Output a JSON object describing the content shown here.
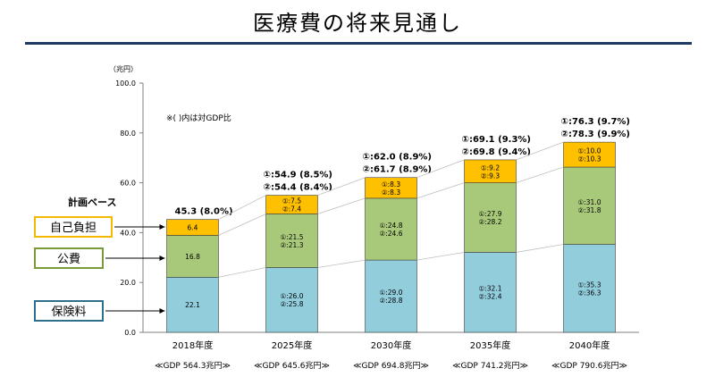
{
  "page": {
    "title": "医療費の将来見通し"
  },
  "labels": {
    "plan_base": "計画ベース",
    "note": "※(  )内は対GDP比"
  },
  "legend_boxes": [
    {
      "label": "自己負担",
      "color": "#f5b800"
    },
    {
      "label": "公費",
      "color": "#7a9a3a"
    },
    {
      "label": "保険料",
      "color": "#2e6f8e"
    }
  ],
  "chart_data": {
    "type": "bar",
    "stacked": true,
    "ylabel": "（兆円）",
    "ylim": [
      0,
      100
    ],
    "ytick_labels": [
      "0.0",
      "20.0",
      "40.0",
      "60.0",
      "80.0",
      "100.0"
    ],
    "yticks": [
      0,
      20,
      40,
      60,
      80,
      100
    ],
    "categories": [
      "2018年度",
      "2025年度",
      "2030年度",
      "2035年度",
      "2040年度"
    ],
    "gdp_labels": [
      "≪GDP 564.3兆円≫",
      "≪GDP 645.6兆円≫",
      "≪GDP 694.8兆円≫",
      "≪GDP 741.2兆円≫",
      "≪GDP 790.6兆円≫"
    ],
    "series": [
      {
        "name": "保険料",
        "color": "#92cddc",
        "values": [
          22.1,
          26.0,
          29.0,
          32.1,
          35.3
        ],
        "labels": [
          [
            "22.1"
          ],
          [
            "①:26.0",
            "②:25.8"
          ],
          [
            "①:29.0",
            "②:28.8"
          ],
          [
            "①:32.1",
            "②:32.4"
          ],
          [
            "①:35.3",
            "②:36.3"
          ]
        ]
      },
      {
        "name": "公費",
        "color": "#a9c97a",
        "values": [
          16.8,
          21.5,
          24.8,
          27.9,
          31.0
        ],
        "labels": [
          [
            "16.8"
          ],
          [
            "①:21.5",
            "②:21.3"
          ],
          [
            "①:24.8",
            "②:24.6"
          ],
          [
            "①:27.9",
            "②:28.2"
          ],
          [
            "①:31.0",
            "②:31.8"
          ]
        ]
      },
      {
        "name": "自己負担",
        "color": "#ffc000",
        "values": [
          6.4,
          7.5,
          8.3,
          9.2,
          10.0
        ],
        "labels": [
          [
            "6.4"
          ],
          [
            "①:7.5",
            "②:7.4"
          ],
          [
            "①:8.3",
            "②:8.3"
          ],
          [
            "①:9.2",
            "②:9.3"
          ],
          [
            "①:10.0",
            "②:10.3"
          ]
        ]
      }
    ],
    "totals": [
      [
        "45.3 (8.0%)"
      ],
      [
        "①:54.9 (8.5%)",
        "②:54.4 (8.4%)"
      ],
      [
        "①:62.0 (8.9%)",
        "②:61.7 (8.9%)"
      ],
      [
        "①:69.1 (9.3%)",
        "②:69.8 (9.4%)"
      ],
      [
        "①:76.3 (9.7%)",
        "②:78.3 (9.9%)"
      ]
    ],
    "grid": false
  }
}
